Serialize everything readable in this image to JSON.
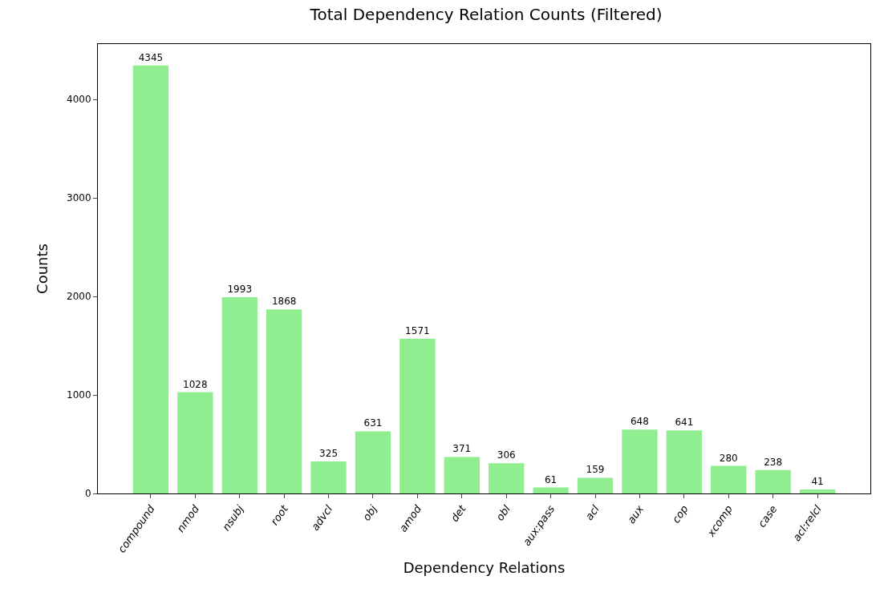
{
  "chart_data": {
    "type": "bar",
    "title": "Total Dependency Relation Counts (Filtered)",
    "xlabel": "Dependency Relations",
    "ylabel": "Counts",
    "categories": [
      "compound",
      "nmod",
      "nsubj",
      "root",
      "advcl",
      "obj",
      "amod",
      "det",
      "obl",
      "aux:pass",
      "acl",
      "aux",
      "cop",
      "xcomp",
      "case",
      "acl:relcl"
    ],
    "values": [
      4345,
      1028,
      1993,
      1868,
      325,
      631,
      1571,
      371,
      306,
      61,
      159,
      648,
      641,
      280,
      238,
      41
    ],
    "color": "#90ee90",
    "ylim": [
      0,
      4562
    ],
    "yticks": [
      0,
      1000,
      2000,
      3000,
      4000
    ],
    "data_labels": true
  }
}
